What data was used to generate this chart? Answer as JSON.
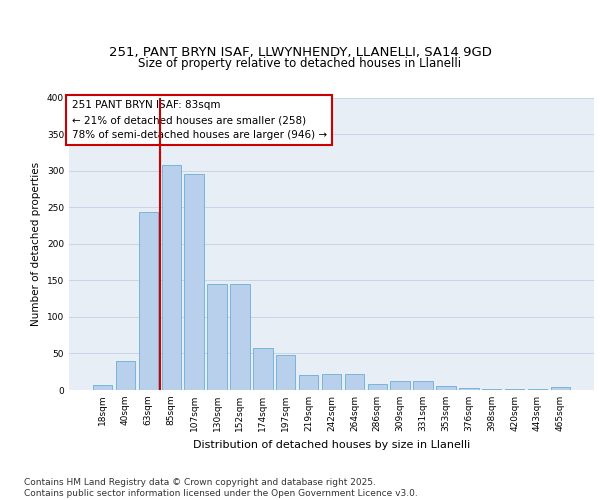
{
  "title1": "251, PANT BRYN ISAF, LLWYNHENDY, LLANELLI, SA14 9GD",
  "title2": "Size of property relative to detached houses in Llanelli",
  "xlabel": "Distribution of detached houses by size in Llanelli",
  "ylabel": "Number of detached properties",
  "categories": [
    "18sqm",
    "40sqm",
    "63sqm",
    "85sqm",
    "107sqm",
    "130sqm",
    "152sqm",
    "174sqm",
    "197sqm",
    "219sqm",
    "242sqm",
    "264sqm",
    "286sqm",
    "309sqm",
    "331sqm",
    "353sqm",
    "376sqm",
    "398sqm",
    "420sqm",
    "443sqm",
    "465sqm"
  ],
  "values": [
    7,
    40,
    243,
    308,
    295,
    145,
    145,
    57,
    48,
    20,
    22,
    22,
    8,
    12,
    12,
    5,
    3,
    1,
    1,
    1,
    4
  ],
  "bar_color": "#b8d0eb",
  "bar_edge_color": "#6aaed6",
  "vline_color": "#cc0000",
  "annotation_text": "251 PANT BRYN ISAF: 83sqm\n← 21% of detached houses are smaller (258)\n78% of semi-detached houses are larger (946) →",
  "annotation_box_color": "#ffffff",
  "annotation_box_edge": "#cc0000",
  "grid_color": "#c8d4e8",
  "background_color": "#e8eef6",
  "ylim": [
    0,
    400
  ],
  "yticks": [
    0,
    50,
    100,
    150,
    200,
    250,
    300,
    350,
    400
  ],
  "footer_text": "Contains HM Land Registry data © Crown copyright and database right 2025.\nContains public sector information licensed under the Open Government Licence v3.0.",
  "title1_fontsize": 9.5,
  "title2_fontsize": 8.5,
  "annotation_fontsize": 7.5,
  "ylabel_fontsize": 7.5,
  "xlabel_fontsize": 8,
  "tick_fontsize": 6.5,
  "footer_fontsize": 6.5
}
